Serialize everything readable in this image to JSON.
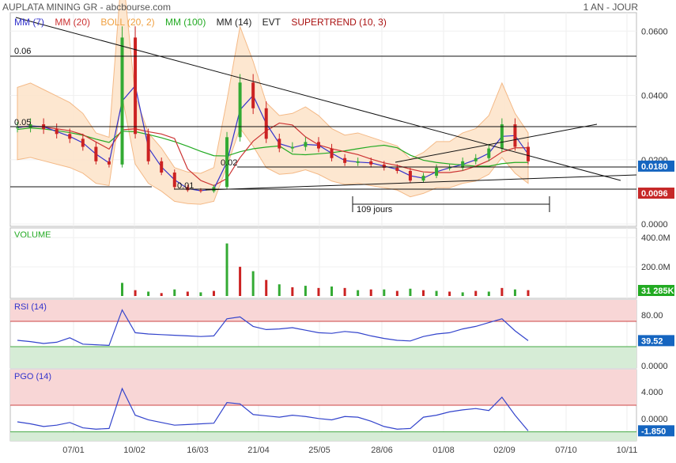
{
  "header": {
    "title": "AUPLATA MINING GR - abcbourse.com",
    "period": "1 AN - JOUR"
  },
  "legend": [
    {
      "label": "MM (7)",
      "color": "#3333cc"
    },
    {
      "label": "MM (20)",
      "color": "#cc3333"
    },
    {
      "label": "BOLL (20, 2)",
      "color": "#f0a040"
    },
    {
      "label": "MM (100)",
      "color": "#22aa22"
    },
    {
      "label": "MM (14)",
      "color": "#222222"
    },
    {
      "label": "EVT",
      "color": "#222222"
    },
    {
      "label": "SUPERTREND (10, 3)",
      "color": "#aa1111"
    }
  ],
  "annotations": {
    "level_006": "0.06",
    "level_005": "0.05",
    "level_002": "0.02",
    "level_001": "0.01",
    "duration": "109 jours"
  },
  "chart_data": [
    {
      "type": "candlestick",
      "name": "price",
      "ylim": [
        0,
        0.065
      ],
      "ticks": [
        "0.0600",
        "0.0400",
        "0.0200",
        "0.0000"
      ],
      "tick_values": [
        0.06,
        0.04,
        0.02,
        0
      ],
      "price_badges": [
        {
          "label": "0.0180",
          "value": 0.018,
          "color": "#1565c0"
        },
        {
          "label": "0.0096",
          "value": 0.0096,
          "color": "#c62828"
        }
      ],
      "x_labels": [
        "07/01",
        "10/02",
        "16/03",
        "21/04",
        "25/05",
        "28/06",
        "01/08",
        "02/09",
        "07/10",
        "10/11"
      ],
      "close": [
        0.03,
        0.031,
        0.0295,
        0.028,
        0.0265,
        0.024,
        0.0195,
        0.0185,
        0.058,
        0.028,
        0.0195,
        0.016,
        0.0115,
        0.0105,
        0.0102,
        0.0115,
        0.027,
        0.044,
        0.036,
        0.0265,
        0.0235,
        0.024,
        0.0255,
        0.0235,
        0.0205,
        0.019,
        0.0195,
        0.0185,
        0.0175,
        0.0165,
        0.0135,
        0.015,
        0.0175,
        0.0175,
        0.0195,
        0.0205,
        0.0235,
        0.031,
        0.024,
        0.0195
      ]
    },
    {
      "type": "bar",
      "name": "VOLUME",
      "ylim": [
        0,
        450
      ],
      "ticks": [
        "400.0M",
        "200.0M"
      ],
      "tick_values": [
        400,
        200
      ],
      "last_label": "31 285K",
      "values": [
        0,
        0,
        0,
        0,
        0,
        0,
        0,
        0,
        90,
        40,
        30,
        20,
        45,
        30,
        25,
        35,
        360,
        200,
        170,
        110,
        80,
        60,
        70,
        55,
        65,
        55,
        40,
        45,
        45,
        35,
        50,
        40,
        35,
        30,
        25,
        35,
        30,
        55,
        45,
        40
      ]
    },
    {
      "type": "line",
      "name": "RSI (14)",
      "ylim": [
        0,
        100
      ],
      "ticks": [
        "80.00",
        "0.0000"
      ],
      "tick_values": [
        80,
        0
      ],
      "bands": [
        30,
        70
      ],
      "last_label": "39.52",
      "values": [
        40,
        38,
        35,
        37,
        44,
        34,
        33,
        32,
        88,
        52,
        50,
        49,
        48,
        47,
        46,
        47,
        74,
        77,
        62,
        57,
        58,
        60,
        56,
        52,
        51,
        54,
        52,
        47,
        43,
        40,
        39,
        46,
        50,
        52,
        58,
        62,
        68,
        74,
        55,
        39.52
      ]
    },
    {
      "type": "line",
      "name": "PGO (14)",
      "ylim": [
        -3,
        7
      ],
      "ticks": [
        "4.000",
        "0.0000"
      ],
      "tick_values": [
        4,
        0
      ],
      "bands": [
        -2,
        2
      ],
      "last_label": "-1.850",
      "values": [
        -0.5,
        -0.8,
        -1.2,
        -1.0,
        -0.6,
        -1.4,
        -1.6,
        -1.5,
        4.5,
        0.5,
        -0.2,
        -0.6,
        -1.0,
        -0.9,
        -0.8,
        -0.7,
        2.4,
        2.2,
        0.6,
        0.4,
        0.2,
        0.5,
        0.3,
        0.0,
        -0.2,
        0.3,
        0.2,
        -0.4,
        -1.2,
        -1.6,
        -1.5,
        0.2,
        0.5,
        1.0,
        1.3,
        1.5,
        1.2,
        3.2,
        0.5,
        -1.85
      ]
    }
  ]
}
